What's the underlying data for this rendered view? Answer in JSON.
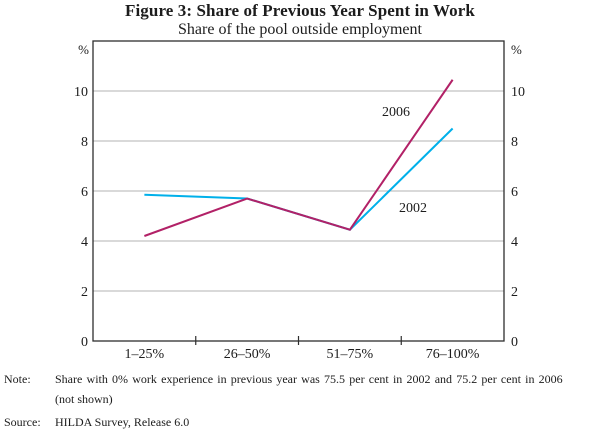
{
  "figure": {
    "title": "Figure 3: Share of Previous Year Spent in Work",
    "subtitle": "Share of the pool outside employment"
  },
  "chart_data": {
    "type": "line",
    "categories": [
      "1–25%",
      "26–50%",
      "51–75%",
      "76–100%"
    ],
    "series": [
      {
        "name": "2006",
        "color": "#b22167",
        "values": [
          4.2,
          5.7,
          4.45,
          10.45
        ]
      },
      {
        "name": "2002",
        "color": "#00b0ea",
        "values": [
          5.85,
          5.7,
          4.45,
          8.5
        ]
      }
    ],
    "title": "Figure 3: Share of Previous Year Spent in Work",
    "subtitle": "Share of the pool outside employment",
    "xlabel": "",
    "ylabel": "%",
    "y_unit": "%",
    "ylim": [
      0,
      12
    ],
    "yticks": [
      0,
      2,
      4,
      6,
      8,
      10
    ],
    "grid": "horizontal",
    "gridline_color": "#b3b3b3",
    "frame_color": "#2e2e2e",
    "legend": "inline-labels"
  },
  "note": {
    "label": "Note:",
    "line1": "Share with 0% work experience in previous year was 75.5 per cent in 2002 and 75.2 per cent in 2006",
    "line2": "(not shown)"
  },
  "source": {
    "label": "Source:",
    "text": "HILDA Survey, Release 6.0"
  }
}
